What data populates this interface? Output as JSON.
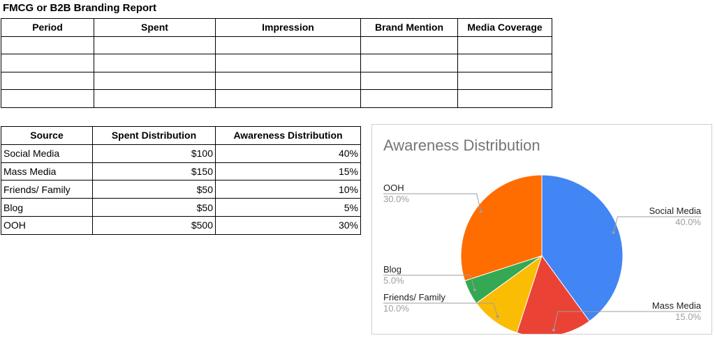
{
  "report": {
    "title": "FMCG or B2B Branding Report",
    "headers": [
      "Period",
      "Spent",
      "Impression",
      "Brand Mention",
      "Media Coverage"
    ],
    "rows": [
      [
        "",
        "",
        "",
        "",
        ""
      ],
      [
        "",
        "",
        "",
        "",
        ""
      ],
      [
        "",
        "",
        "",
        "",
        ""
      ],
      [
        "",
        "",
        "",
        "",
        ""
      ]
    ]
  },
  "source_table": {
    "headers": [
      "Source",
      "Spent Distribution",
      "Awareness Distribution"
    ],
    "rows": [
      [
        "Social Media",
        "$100",
        "40%"
      ],
      [
        "Mass Media",
        "$150",
        "15%"
      ],
      [
        "Friends/ Family",
        "$50",
        "10%"
      ],
      [
        "Blog",
        "$50",
        "5%"
      ],
      [
        "OOH",
        "$500",
        "30%"
      ]
    ]
  },
  "chart_data": {
    "type": "pie",
    "title": "Awareness Distribution",
    "slices": [
      {
        "label": "Social Media",
        "value": 40,
        "pct_label": "40.0%",
        "color": "#4285F4",
        "label_side": "right"
      },
      {
        "label": "Mass Media",
        "value": 15,
        "pct_label": "15.0%",
        "color": "#EA4335",
        "label_side": "right"
      },
      {
        "label": "Friends/ Family",
        "value": 10,
        "pct_label": "10.0%",
        "color": "#FBBC04",
        "label_side": "left"
      },
      {
        "label": "Blog",
        "value": 5,
        "pct_label": "5.0%",
        "color": "#34A853",
        "label_side": "left"
      },
      {
        "label": "OOH",
        "value": 30,
        "pct_label": "30.0%",
        "color": "#FF6D01",
        "label_side": "left"
      }
    ]
  }
}
